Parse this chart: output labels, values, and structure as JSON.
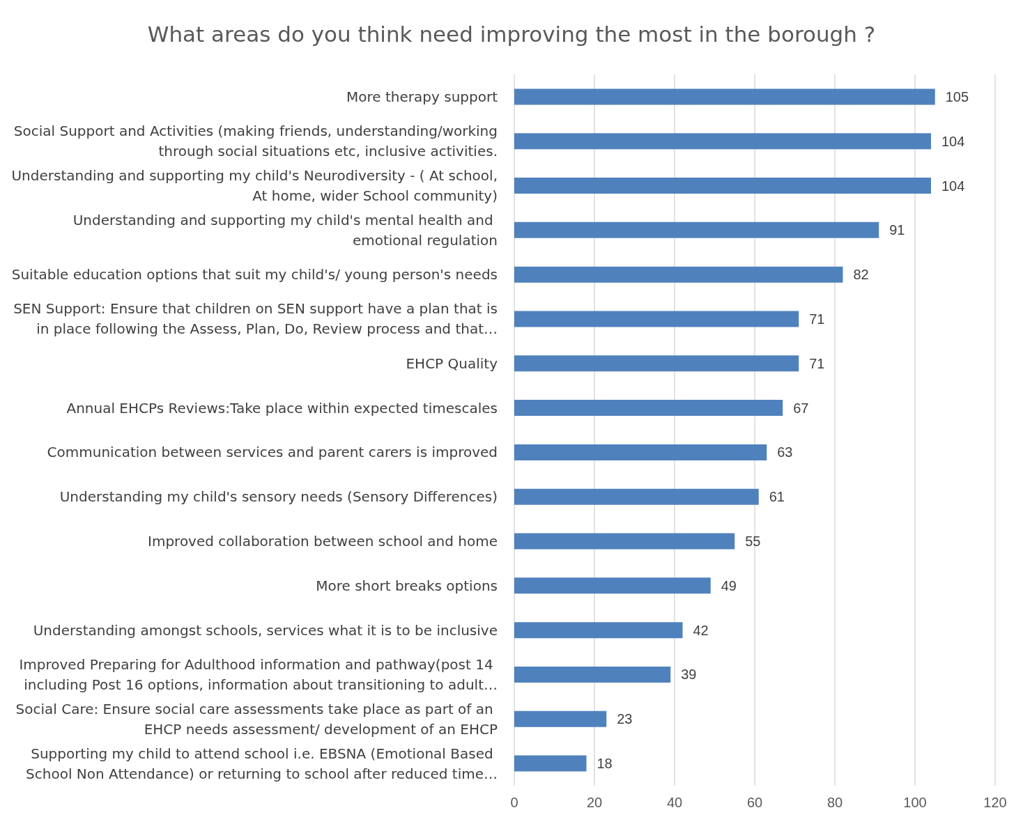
{
  "chart_data": {
    "type": "bar",
    "orientation": "horizontal",
    "title": "What areas do you think need improving the most in the borough ?",
    "categories": [
      "More therapy support",
      "Social Support and Activities (making friends, understanding/working through social situations etc, inclusive activities.",
      "Understanding and supporting my child's Neurodiversity - ( At school, At home, wider School community)",
      "Understanding and supporting my child's mental health and emotional regulation",
      "Suitable education options that suit my child's/ young person's needs",
      "SEN Support: Ensure that children on SEN support have a plan that is in place following the Assess, Plan, Do, Review process and that…",
      "EHCP Quality",
      "Annual EHCPs Reviews:Take place within expected timescales",
      "Communication between services and parent carers is improved",
      "Understanding my child's sensory needs (Sensory Differences)",
      "Improved collaboration between school and home",
      "More short breaks options",
      "Understanding amongst schools, services what it is to be inclusive",
      "Improved Preparing for Adulthood information and pathway(post 14 including Post 16 options, information about transitioning to adult…",
      "Social Care: Ensure social care assessments take place as part of an EHCP needs assessment/ development of an EHCP",
      "Supporting my child to attend school i.e. EBSNA (Emotional Based School Non Attendance) or returning to school after reduced time…"
    ],
    "values": [
      105,
      104,
      104,
      91,
      82,
      71,
      71,
      67,
      63,
      61,
      55,
      49,
      42,
      39,
      23,
      18
    ],
    "color": "#4f81bd",
    "xlim": [
      0,
      120
    ],
    "xticks": [
      0,
      20,
      40,
      60,
      80,
      100,
      120
    ],
    "grid": "x",
    "data_labels": true
  }
}
